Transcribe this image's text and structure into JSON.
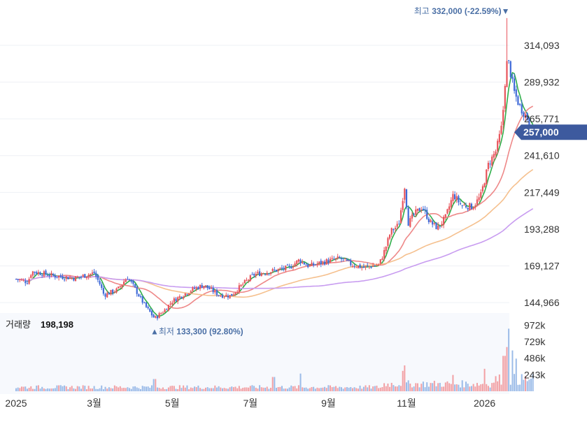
{
  "chart_data": {
    "type": "candlestick",
    "price_axis": {
      "ticks": [
        144966,
        169127,
        193288,
        217449,
        241610,
        265771,
        289932,
        314093
      ],
      "tick_labels": [
        "144,966",
        "169,127",
        "193,288",
        "217,449",
        "241,610",
        "265,771",
        "289,932",
        "314,093"
      ],
      "range": [
        122000,
        340000
      ]
    },
    "x_axis": {
      "labels": [
        {
          "text": "2025",
          "month_index": 0
        },
        {
          "text": "3월",
          "month_index": 2
        },
        {
          "text": "5월",
          "month_index": 4
        },
        {
          "text": "7월",
          "month_index": 6
        },
        {
          "text": "9월",
          "month_index": 8
        },
        {
          "text": "11월",
          "month_index": 10
        },
        {
          "text": "2026",
          "month_index": 12
        }
      ]
    },
    "current_price": {
      "label": "257,000",
      "value": 257000,
      "color": "#3d5a9e"
    },
    "high_annotation": {
      "prefix": "최고",
      "value_text": "332,000 (-22.59%)",
      "marker": "▼",
      "value": 332000
    },
    "low_annotation": {
      "marker": "▲",
      "prefix": "최저",
      "value_text": "133,300 (92.80%)",
      "value": 133300
    },
    "price_anchors": [
      {
        "m": 0.0,
        "p": 160500
      },
      {
        "m": 0.3,
        "p": 158500
      },
      {
        "m": 0.4,
        "p": 165500
      },
      {
        "m": 1.0,
        "p": 162500
      },
      {
        "m": 1.5,
        "p": 161000
      },
      {
        "m": 2.0,
        "p": 164500
      },
      {
        "m": 2.15,
        "p": 157000
      },
      {
        "m": 2.25,
        "p": 150000
      },
      {
        "m": 2.6,
        "p": 153500
      },
      {
        "m": 2.85,
        "p": 162000
      },
      {
        "m": 3.0,
        "p": 156000
      },
      {
        "m": 3.3,
        "p": 143000
      },
      {
        "m": 3.55,
        "p": 134500
      },
      {
        "m": 3.8,
        "p": 140000
      },
      {
        "m": 4.0,
        "p": 146000
      },
      {
        "m": 4.5,
        "p": 153500
      },
      {
        "m": 4.8,
        "p": 156500
      },
      {
        "m": 5.2,
        "p": 150000
      },
      {
        "m": 5.5,
        "p": 149500
      },
      {
        "m": 5.8,
        "p": 157000
      },
      {
        "m": 6.1,
        "p": 163500
      },
      {
        "m": 6.5,
        "p": 165500
      },
      {
        "m": 7.0,
        "p": 168000
      },
      {
        "m": 7.25,
        "p": 173000
      },
      {
        "m": 7.5,
        "p": 169000
      },
      {
        "m": 8.0,
        "p": 172500
      },
      {
        "m": 8.3,
        "p": 174000
      },
      {
        "m": 8.6,
        "p": 170000
      },
      {
        "m": 8.9,
        "p": 168000
      },
      {
        "m": 9.3,
        "p": 170000
      },
      {
        "m": 9.45,
        "p": 180000
      },
      {
        "m": 9.6,
        "p": 192000
      },
      {
        "m": 9.8,
        "p": 196000
      },
      {
        "m": 9.95,
        "p": 222000
      },
      {
        "m": 10.05,
        "p": 197000
      },
      {
        "m": 10.2,
        "p": 203000
      },
      {
        "m": 10.4,
        "p": 208000
      },
      {
        "m": 10.6,
        "p": 198000
      },
      {
        "m": 10.8,
        "p": 194000
      },
      {
        "m": 11.0,
        "p": 201000
      },
      {
        "m": 11.2,
        "p": 216000
      },
      {
        "m": 11.4,
        "p": 209000
      },
      {
        "m": 11.7,
        "p": 208000
      },
      {
        "m": 11.9,
        "p": 215000
      },
      {
        "m": 12.1,
        "p": 236000
      },
      {
        "m": 12.3,
        "p": 245000
      },
      {
        "m": 12.45,
        "p": 262000
      },
      {
        "m": 12.55,
        "p": 300000
      },
      {
        "m": 12.6,
        "p": 305000
      },
      {
        "m": 12.75,
        "p": 284000
      },
      {
        "m": 12.9,
        "p": 274000
      },
      {
        "m": 13.1,
        "p": 266000
      },
      {
        "m": 13.25,
        "p": 257000
      }
    ],
    "moving_averages": [
      {
        "window": 5,
        "color": "#2fae4a"
      },
      {
        "window": 20,
        "color": "#ee8888"
      },
      {
        "window": 60,
        "color": "#f5c08e"
      },
      {
        "window": 120,
        "color": "#c89cf0"
      }
    ],
    "candle_colors": {
      "up": "#e8545b",
      "down": "#3f6ad8"
    },
    "volume": {
      "title": "거래량",
      "value_text": "198,198",
      "ticks": [
        243000,
        486000,
        729000,
        972000
      ],
      "tick_labels": [
        "243k",
        "486k",
        "729k",
        "972k"
      ],
      "range": [
        0,
        1150000
      ],
      "up_color": "#f2a0a4",
      "down_color": "#9bbbe8",
      "spikes": [
        {
          "m": 12.62,
          "v": 920000
        },
        {
          "m": 12.55,
          "v": 650000
        },
        {
          "m": 12.5,
          "v": 520000
        },
        {
          "m": 12.7,
          "v": 600000
        },
        {
          "m": 12.8,
          "v": 480000
        },
        {
          "m": 9.95,
          "v": 380000
        },
        {
          "m": 9.9,
          "v": 300000
        },
        {
          "m": 12.0,
          "v": 330000
        },
        {
          "m": 11.2,
          "v": 240000
        },
        {
          "m": 6.6,
          "v": 210000
        },
        {
          "m": 7.3,
          "v": 260000
        },
        {
          "m": 3.55,
          "v": 180000
        }
      ]
    }
  }
}
